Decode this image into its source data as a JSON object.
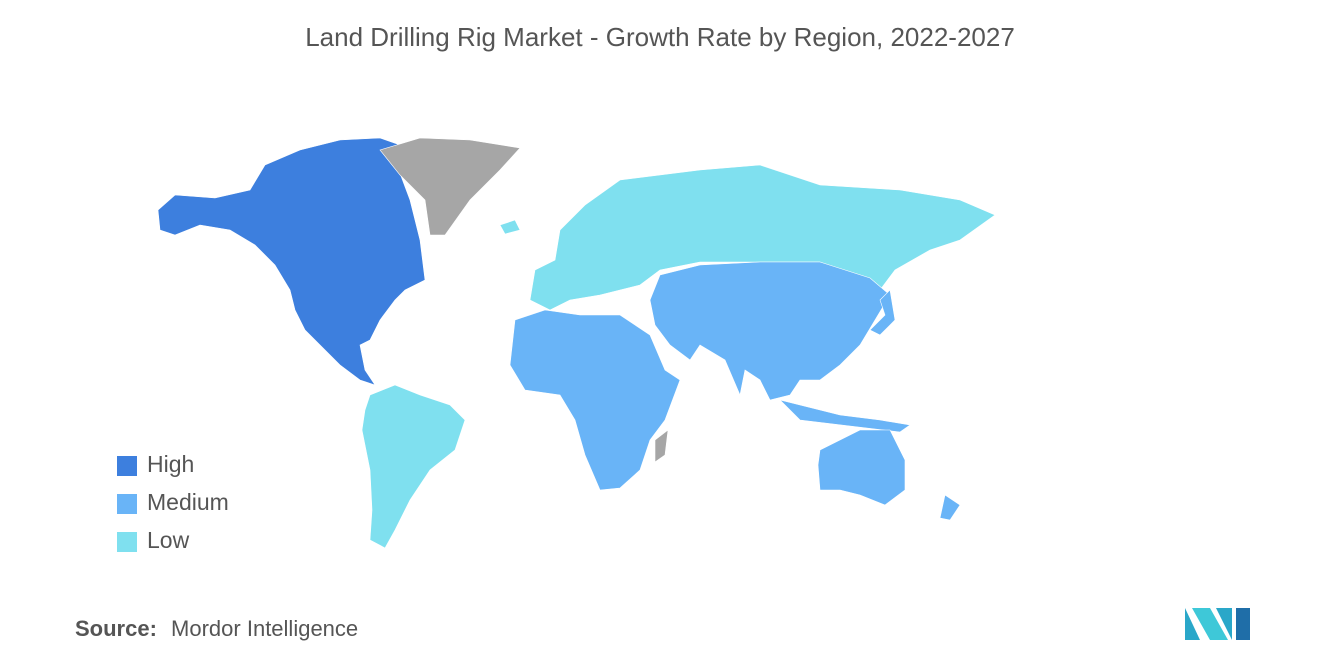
{
  "header": {
    "title": "Land Drilling Rig Market - Growth Rate by Region, 2022-2027"
  },
  "legend": {
    "items": [
      {
        "label": "High",
        "color": "#3d7fde"
      },
      {
        "label": "Medium",
        "color": "#69b4f7"
      },
      {
        "label": "Low",
        "color": "#7fe0ef"
      }
    ]
  },
  "source": {
    "label": "Source:",
    "text": "Mordor Intelligence"
  }
}
